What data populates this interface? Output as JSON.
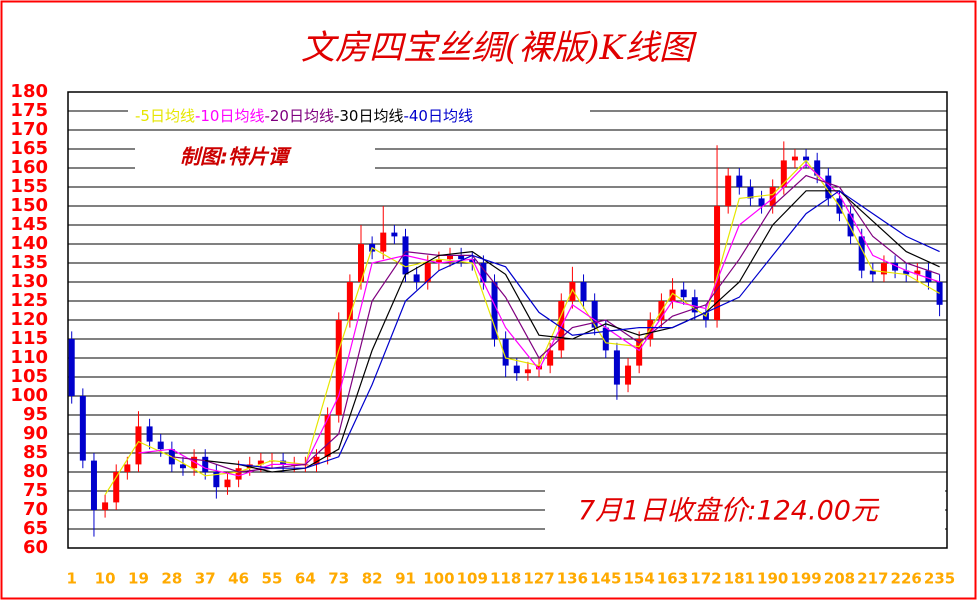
{
  "chart_data": {
    "type": "candlestick",
    "title": "文房四宝丝绸(裸版)K线图",
    "subtitle": "制图:特片谭",
    "annotation": "7月1日收盘价:124.00元",
    "x": [
      1,
      4,
      7,
      10,
      13,
      16,
      19,
      22,
      25,
      28,
      31,
      34,
      37,
      40,
      43,
      46,
      49,
      52,
      55,
      58,
      61,
      64,
      67,
      70,
      73,
      76,
      79,
      82,
      85,
      88,
      91,
      94,
      97,
      100,
      103,
      106,
      109,
      112,
      115,
      118,
      121,
      124,
      127,
      130,
      133,
      136,
      139,
      142,
      145,
      148,
      151,
      154,
      157,
      160,
      163,
      166,
      169,
      172,
      175,
      178,
      181,
      184,
      187,
      190,
      193,
      196,
      199,
      202,
      205,
      208,
      211,
      214,
      217,
      220,
      223,
      226,
      229,
      232,
      235
    ],
    "open": [
      115,
      100,
      83,
      70,
      72,
      80,
      82,
      92,
      88,
      86,
      82,
      81,
      84,
      80,
      76,
      78,
      81,
      82,
      83,
      83,
      82,
      82,
      82,
      84,
      95,
      120,
      130,
      140,
      138,
      143,
      142,
      132,
      130,
      135,
      136,
      137,
      136,
      135,
      130,
      115,
      108,
      106,
      107,
      108,
      112,
      125,
      130,
      125,
      118,
      112,
      103,
      108,
      115,
      120,
      125,
      128,
      126,
      122,
      120,
      150,
      158,
      155,
      152,
      150,
      155,
      162,
      163,
      162,
      158,
      152,
      148,
      142,
      133,
      132,
      135,
      133,
      132,
      133,
      130
    ],
    "high": [
      117,
      102,
      85,
      74,
      82,
      84,
      96,
      94,
      90,
      88,
      84,
      86,
      86,
      82,
      80,
      83,
      84,
      85,
      85,
      85,
      84,
      84,
      86,
      97,
      122,
      132,
      145,
      142,
      150,
      145,
      144,
      134,
      137,
      138,
      139,
      139,
      138,
      137,
      132,
      117,
      110,
      109,
      110,
      114,
      127,
      134,
      132,
      127,
      120,
      114,
      110,
      117,
      122,
      127,
      131,
      130,
      128,
      124,
      166,
      160,
      160,
      157,
      154,
      157,
      167,
      165,
      165,
      164,
      160,
      154,
      150,
      144,
      135,
      137,
      137,
      135,
      135,
      135,
      132
    ],
    "low": [
      98,
      81,
      63,
      68,
      70,
      78,
      80,
      86,
      84,
      80,
      79,
      79,
      78,
      73,
      74,
      76,
      79,
      80,
      81,
      80,
      80,
      80,
      80,
      82,
      93,
      118,
      128,
      136,
      136,
      140,
      130,
      128,
      128,
      133,
      134,
      134,
      133,
      128,
      113,
      105,
      104,
      104,
      105,
      106,
      110,
      123,
      123,
      116,
      110,
      99,
      101,
      106,
      113,
      118,
      123,
      124,
      120,
      118,
      118,
      148,
      153,
      150,
      148,
      148,
      153,
      160,
      160,
      156,
      150,
      146,
      140,
      131,
      130,
      130,
      131,
      130,
      130,
      128,
      121
    ],
    "close": [
      100,
      83,
      70,
      72,
      80,
      82,
      92,
      88,
      86,
      82,
      81,
      84,
      80,
      76,
      78,
      81,
      82,
      83,
      83,
      82,
      82,
      82,
      84,
      95,
      120,
      130,
      140,
      138,
      143,
      142,
      132,
      130,
      135,
      136,
      137,
      136,
      135,
      130,
      115,
      108,
      106,
      107,
      108,
      112,
      125,
      130,
      125,
      118,
      112,
      103,
      108,
      115,
      120,
      125,
      128,
      126,
      122,
      120,
      150,
      158,
      155,
      152,
      150,
      155,
      162,
      163,
      162,
      158,
      152,
      148,
      142,
      133,
      132,
      135,
      133,
      132,
      133,
      130,
      124
    ],
    "up_color": "#ff0000",
    "down_color": "#0000cc",
    "series": [
      {
        "name": "-5日均线",
        "color": "#e6e600",
        "x": [
          1,
          10,
          19,
          28,
          37,
          46,
          55,
          64,
          73,
          82,
          91,
          100,
          109,
          118,
          127,
          136,
          145,
          154,
          163,
          172,
          181,
          190,
          199,
          208,
          217,
          226,
          235
        ],
        "values": [
          null,
          74,
          88,
          84,
          79,
          80,
          83,
          82,
          112,
          139,
          134,
          136,
          135,
          110,
          108,
          128,
          114,
          113,
          127,
          121,
          152,
          153,
          162,
          150,
          133,
          132,
          127
        ]
      },
      {
        "name": "-10日均线",
        "color": "#ff00ff",
        "x": [
          1,
          10,
          19,
          28,
          37,
          46,
          55,
          64,
          73,
          82,
          91,
          100,
          109,
          118,
          127,
          136,
          145,
          154,
          163,
          172,
          181,
          190,
          199,
          208,
          217,
          226,
          235
        ],
        "values": [
          null,
          null,
          85,
          86,
          81,
          79,
          82,
          82,
          100,
          135,
          137,
          135,
          136,
          118,
          107,
          124,
          118,
          112,
          125,
          123,
          145,
          152,
          161,
          153,
          137,
          133,
          130
        ]
      },
      {
        "name": "-20日均线",
        "color": "#800080",
        "x": [
          1,
          10,
          19,
          28,
          37,
          46,
          55,
          64,
          73,
          82,
          91,
          100,
          109,
          118,
          127,
          136,
          145,
          154,
          163,
          172,
          181,
          190,
          199,
          208,
          217,
          226,
          235
        ],
        "values": [
          null,
          null,
          null,
          84,
          83,
          80,
          81,
          82,
          90,
          125,
          138,
          137,
          137,
          126,
          110,
          118,
          120,
          114,
          121,
          124,
          136,
          150,
          158,
          155,
          142,
          135,
          132
        ]
      },
      {
        "name": "-30日均线",
        "color": "#000000",
        "x": [
          1,
          10,
          19,
          28,
          37,
          46,
          55,
          64,
          73,
          82,
          91,
          100,
          109,
          118,
          127,
          136,
          145,
          154,
          163,
          172,
          181,
          190,
          199,
          208,
          217,
          226,
          235
        ],
        "values": [
          null,
          null,
          null,
          null,
          83,
          82,
          80,
          81,
          86,
          112,
          132,
          137,
          138,
          132,
          116,
          115,
          119,
          116,
          118,
          122,
          130,
          145,
          154,
          154,
          146,
          138,
          134
        ]
      },
      {
        "name": "-40日均线",
        "color": "#0000cc",
        "x": [
          1,
          10,
          19,
          28,
          37,
          46,
          55,
          64,
          73,
          82,
          91,
          100,
          109,
          118,
          127,
          136,
          145,
          154,
          163,
          172,
          181,
          190,
          199,
          208,
          217,
          226,
          235
        ],
        "values": [
          null,
          null,
          null,
          null,
          null,
          82,
          81,
          81,
          84,
          103,
          125,
          133,
          137,
          134,
          122,
          116,
          117,
          118,
          118,
          122,
          126,
          137,
          148,
          154,
          148,
          142,
          138
        ]
      }
    ],
    "xlim": [
      0,
      237
    ],
    "xticks": [
      1,
      10,
      19,
      28,
      37,
      46,
      55,
      64,
      73,
      82,
      91,
      100,
      109,
      118,
      127,
      136,
      145,
      154,
      163,
      172,
      181,
      190,
      199,
      208,
      217,
      226,
      235
    ],
    "ylim": [
      60,
      180
    ],
    "yticks": [
      60,
      65,
      70,
      75,
      80,
      85,
      90,
      95,
      100,
      105,
      110,
      115,
      120,
      125,
      130,
      135,
      140,
      145,
      150,
      155,
      160,
      165,
      170,
      175,
      180
    ],
    "grid": true
  }
}
